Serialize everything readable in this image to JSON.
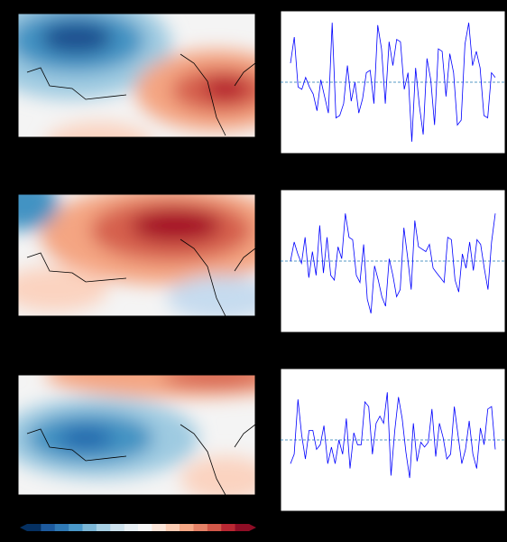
{
  "chart_data": [
    {
      "type": "line",
      "color": "#0000ff",
      "ref_color": "#1f77b4",
      "ylim": [
        -3,
        3
      ],
      "zero_line": 0,
      "values": [
        0.8,
        1.9,
        -0.2,
        -0.3,
        0.2,
        -0.2,
        -0.5,
        -1.2,
        0.1,
        -0.6,
        -1.3,
        2.5,
        -1.5,
        -1.4,
        -0.9,
        0.7,
        -0.8,
        0.0,
        -1.3,
        -0.7,
        0.4,
        0.5,
        -0.9,
        2.4,
        1.4,
        -0.9,
        1.7,
        0.7,
        1.8,
        1.7,
        -0.3,
        0.4,
        -2.5,
        0.6,
        -1.0,
        -2.2,
        1.0,
        0.1,
        -1.8,
        1.4,
        1.3,
        -0.6,
        1.2,
        0.4,
        -1.8,
        -1.6,
        1.6,
        2.5,
        0.7,
        1.3,
        0.6,
        -1.4,
        -1.5,
        0.4,
        0.2
      ]
    },
    {
      "type": "line",
      "color": "#0000ff",
      "ref_color": "#1f77b4",
      "ylim": [
        -3,
        3
      ],
      "zero_line": 0,
      "values": [
        0,
        0.8,
        0.3,
        -0.1,
        1.0,
        -0.7,
        0.4,
        -0.6,
        1.5,
        -0.5,
        1.0,
        -0.6,
        -0.8,
        0.6,
        0.1,
        2.0,
        1.0,
        0.9,
        -0.6,
        -0.9,
        0.7,
        -1.6,
        -2.2,
        -0.2,
        -0.8,
        -1.5,
        -1.9,
        0.1,
        -0.6,
        -1.5,
        -1.2,
        1.4,
        0.2,
        -1.2,
        1.7,
        0.6,
        0.5,
        0.4,
        0.7,
        -0.3,
        -0.5,
        -0.7,
        -0.9,
        1.0,
        0.9,
        -0.8,
        -1.3,
        0.3,
        -0.3,
        0.8,
        -0.4,
        0.9,
        0.7,
        -0.3,
        -1.2,
        0.8,
        2.0
      ]
    },
    {
      "type": "line",
      "color": "#0000ff",
      "ref_color": "#1f77b4",
      "ylim": [
        -3,
        3
      ],
      "zero_line": 0,
      "values": [
        -1.0,
        -0.6,
        1.7,
        0.2,
        -0.8,
        0.4,
        0.4,
        -0.4,
        -0.2,
        0.6,
        -1.0,
        -0.3,
        -1.0,
        0.0,
        -0.6,
        0.9,
        -1.2,
        0.3,
        -0.2,
        -0.2,
        1.6,
        1.4,
        -0.6,
        0.7,
        1.0,
        0.7,
        2.0,
        -1.5,
        0.4,
        1.8,
        0.9,
        -0.5,
        -1.6,
        0.7,
        -0.9,
        -0.1,
        -0.3,
        -0.1,
        1.3,
        -0.7,
        0.7,
        0.1,
        -0.8,
        -0.6,
        1.4,
        0.2,
        -1.0,
        -0.4,
        0.8,
        -0.6,
        -1.2,
        0.5,
        -0.2,
        1.3,
        1.4,
        -0.4
      ]
    }
  ]
}
